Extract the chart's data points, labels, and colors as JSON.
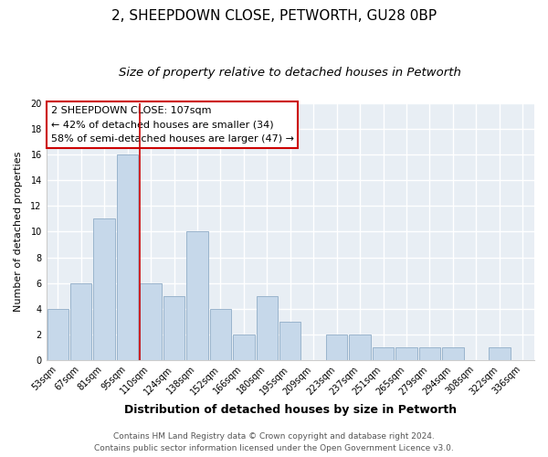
{
  "title": "2, SHEEPDOWN CLOSE, PETWORTH, GU28 0BP",
  "subtitle": "Size of property relative to detached houses in Petworth",
  "xlabel": "Distribution of detached houses by size in Petworth",
  "ylabel": "Number of detached properties",
  "bar_labels": [
    "53sqm",
    "67sqm",
    "81sqm",
    "95sqm",
    "110sqm",
    "124sqm",
    "138sqm",
    "152sqm",
    "166sqm",
    "180sqm",
    "195sqm",
    "209sqm",
    "223sqm",
    "237sqm",
    "251sqm",
    "265sqm",
    "279sqm",
    "294sqm",
    "308sqm",
    "322sqm",
    "336sqm"
  ],
  "bar_heights": [
    4,
    6,
    11,
    16,
    6,
    5,
    10,
    4,
    2,
    5,
    3,
    0,
    2,
    2,
    1,
    1,
    1,
    1,
    0,
    1,
    0
  ],
  "bar_color": "#c6d8ea",
  "bar_edge_color": "#9ab4cc",
  "vline_color": "#cc0000",
  "annotation_title": "2 SHEEPDOWN CLOSE: 107sqm",
  "annotation_line1": "← 42% of detached houses are smaller (34)",
  "annotation_line2": "58% of semi-detached houses are larger (47) →",
  "annotation_box_facecolor": "#ffffff",
  "annotation_box_edgecolor": "#cc0000",
  "ylim": [
    0,
    20
  ],
  "yticks": [
    0,
    2,
    4,
    6,
    8,
    10,
    12,
    14,
    16,
    18,
    20
  ],
  "footer_line1": "Contains HM Land Registry data © Crown copyright and database right 2024.",
  "footer_line2": "Contains public sector information licensed under the Open Government Licence v3.0.",
  "fig_background": "#ffffff",
  "plot_background": "#e8eef4",
  "grid_color": "#ffffff",
  "title_fontsize": 11,
  "subtitle_fontsize": 9.5,
  "xlabel_fontsize": 9,
  "ylabel_fontsize": 8,
  "tick_fontsize": 7,
  "annotation_fontsize": 8,
  "footer_fontsize": 6.5,
  "vline_bar_index": 4
}
